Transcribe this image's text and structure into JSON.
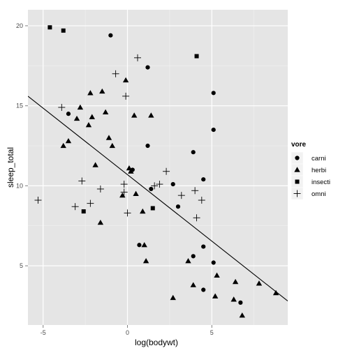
{
  "chart_data": {
    "type": "scatter",
    "title": "",
    "xlabel": "log(bodywt)",
    "ylabel": "sleep_total",
    "xlim": [
      -5.9,
      9.5
    ],
    "ylim": [
      1.3,
      21.0
    ],
    "x_ticks": [
      -5,
      0,
      5
    ],
    "y_ticks": [
      5,
      10,
      15,
      20
    ],
    "x_minor": [
      -2.5,
      2.5,
      7.5
    ],
    "y_minor": [
      7.5,
      12.5,
      17.5
    ],
    "grid": true,
    "background": "#e5e5e5",
    "legend": {
      "title": "vore",
      "position": "right",
      "entries": [
        {
          "label": "carni",
          "shape": "circle"
        },
        {
          "label": "herbi",
          "shape": "triangle"
        },
        {
          "label": "insecti",
          "shape": "square"
        },
        {
          "label": "omni",
          "shape": "plus"
        }
      ]
    },
    "regression_line": {
      "x": [
        -5.9,
        9.5
      ],
      "y": [
        15.6,
        2.8
      ]
    },
    "series": [
      {
        "name": "carni",
        "shape": "circle",
        "points": [
          [
            -1.0,
            19.4
          ],
          [
            1.2,
            17.4
          ],
          [
            -3.5,
            14.5
          ],
          [
            5.1,
            15.8
          ],
          [
            5.1,
            13.5
          ],
          [
            1.2,
            12.5
          ],
          [
            3.9,
            12.1
          ],
          [
            0.3,
            11.0
          ],
          [
            4.5,
            10.4
          ],
          [
            2.7,
            10.1
          ],
          [
            1.4,
            9.8
          ],
          [
            3.0,
            8.7
          ],
          [
            0.7,
            6.3
          ],
          [
            4.5,
            6.2
          ],
          [
            3.9,
            5.6
          ],
          [
            5.1,
            5.2
          ],
          [
            4.5,
            3.5
          ],
          [
            6.7,
            2.7
          ]
        ]
      },
      {
        "name": "herbi",
        "shape": "triangle",
        "points": [
          [
            -2.2,
            15.8
          ],
          [
            -1.5,
            15.9
          ],
          [
            -2.8,
            14.9
          ],
          [
            -1.3,
            14.6
          ],
          [
            -3.0,
            14.2
          ],
          [
            -2.1,
            14.3
          ],
          [
            -2.3,
            13.8
          ],
          [
            -1.1,
            13.0
          ],
          [
            -3.5,
            12.8
          ],
          [
            -0.9,
            12.5
          ],
          [
            -3.8,
            12.5
          ],
          [
            -1.9,
            11.3
          ],
          [
            0.1,
            11.1
          ],
          [
            0.2,
            10.9
          ],
          [
            -0.3,
            9.4
          ],
          [
            0.5,
            9.5
          ],
          [
            -0.1,
            16.6
          ],
          [
            0.4,
            14.4
          ],
          [
            1.4,
            14.4
          ],
          [
            0.9,
            8.4
          ],
          [
            -1.6,
            7.7
          ],
          [
            1.0,
            6.3
          ],
          [
            1.1,
            5.3
          ],
          [
            3.6,
            5.3
          ],
          [
            3.9,
            3.8
          ],
          [
            5.3,
            4.4
          ],
          [
            6.4,
            4.0
          ],
          [
            7.8,
            3.9
          ],
          [
            8.8,
            3.3
          ],
          [
            5.2,
            3.1
          ],
          [
            6.3,
            2.9
          ],
          [
            6.8,
            1.9
          ],
          [
            2.7,
            3.0
          ]
        ]
      },
      {
        "name": "insecti",
        "shape": "square",
        "points": [
          [
            -4.6,
            19.9
          ],
          [
            -3.8,
            19.7
          ],
          [
            4.1,
            18.1
          ],
          [
            -2.6,
            8.4
          ],
          [
            1.5,
            8.6
          ]
        ]
      },
      {
        "name": "omni",
        "shape": "plus",
        "points": [
          [
            0.6,
            18.0
          ],
          [
            -0.7,
            17.0
          ],
          [
            -0.1,
            15.6
          ],
          [
            -3.9,
            14.9
          ],
          [
            2.3,
            10.9
          ],
          [
            -0.2,
            10.1
          ],
          [
            -2.7,
            10.3
          ],
          [
            -1.6,
            9.8
          ],
          [
            -0.2,
            9.6
          ],
          [
            1.6,
            10.0
          ],
          [
            1.9,
            10.1
          ],
          [
            3.2,
            9.4
          ],
          [
            4.0,
            9.7
          ],
          [
            4.4,
            9.1
          ],
          [
            -5.3,
            9.1
          ],
          [
            -3.1,
            8.7
          ],
          [
            -2.2,
            8.9
          ],
          [
            0.0,
            8.3
          ],
          [
            4.1,
            8.0
          ]
        ]
      }
    ]
  }
}
